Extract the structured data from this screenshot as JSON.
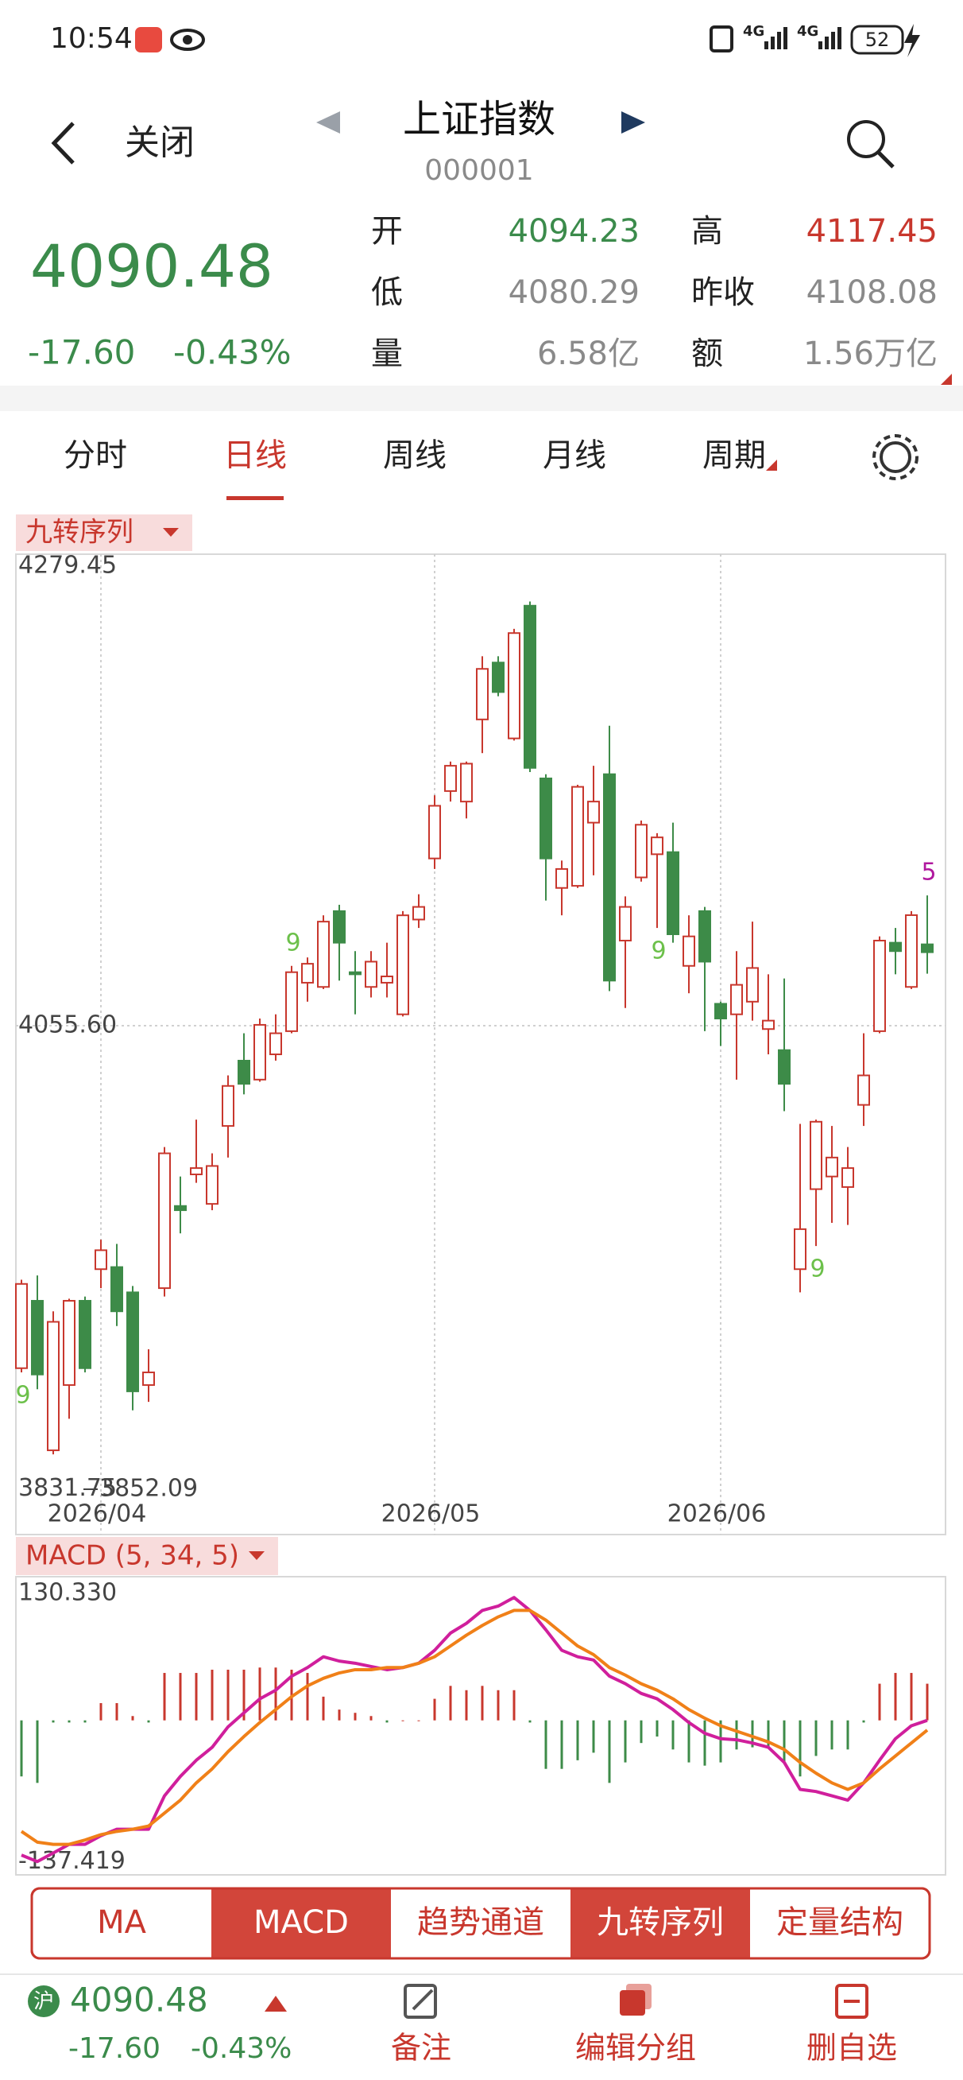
{
  "status": {
    "time": "10:54",
    "network": [
      "4G",
      "4G"
    ],
    "battery": "52"
  },
  "header": {
    "back": "关闭",
    "title": "上证指数",
    "code": "000001"
  },
  "quote": {
    "price": "4090.48",
    "change": "-17.60",
    "change_pct": "-0.43%",
    "color": "#3b8b4b",
    "fields": [
      {
        "label": "开",
        "value": "4094.23",
        "color": "#3b8b4b"
      },
      {
        "label": "高",
        "value": "4117.45",
        "color": "#c8372d"
      },
      {
        "label": "低",
        "value": "4080.29",
        "color": "#8a8a8a"
      },
      {
        "label": "昨收",
        "value": "4108.08",
        "color": "#8a8a8a"
      },
      {
        "label": "量",
        "value": "6.58亿",
        "color": "#8a8a8a"
      },
      {
        "label": "额",
        "value": "1.56万亿",
        "color": "#8a8a8a"
      }
    ]
  },
  "tabs": [
    {
      "label": "分时",
      "active": false
    },
    {
      "label": "日线",
      "active": true
    },
    {
      "label": "周线",
      "active": false
    },
    {
      "label": "月线",
      "active": false
    },
    {
      "label": "周期",
      "active": false
    }
  ],
  "chart_data": [
    {
      "type": "candlestick",
      "indicator": "九转序列",
      "categories": [
        null,
        null,
        null,
        null,
        null,
        "2026/04",
        null,
        null,
        null,
        null,
        null,
        null,
        null,
        null,
        null,
        null,
        null,
        null,
        null,
        null,
        null,
        null,
        null,
        null,
        null,
        null,
        "2026/05",
        null,
        null,
        null,
        null,
        null,
        null,
        null,
        null,
        null,
        null,
        null,
        null,
        null,
        null,
        null,
        null,
        null,
        "2026/06",
        null,
        null,
        null,
        null,
        null,
        null,
        null,
        null,
        null,
        null,
        null,
        null,
        null
      ],
      "open": [
        3893,
        3925,
        3854,
        3885,
        3925,
        3940,
        3941,
        3929,
        3885,
        3931,
        3970,
        3985,
        3971,
        4008,
        4039,
        4030,
        4042,
        4053,
        4076,
        4074,
        4110,
        4081,
        4074,
        4076,
        4061,
        4106,
        4135,
        4167,
        4162,
        4201,
        4228,
        4192,
        4255,
        4173,
        4121,
        4122,
        4152,
        4175,
        4096,
        4126,
        4137,
        4138,
        4084,
        4110,
        4066,
        4061,
        4067,
        4054,
        4044,
        3940,
        3978,
        3984,
        3979,
        4018,
        4053,
        4095,
        4074,
        4094.23
      ],
      "high": [
        3935,
        3937,
        3920,
        3926,
        3927,
        3954,
        3952,
        3932,
        3902,
        3998,
        3984,
        4011,
        3995,
        4032,
        4052,
        4059,
        4061,
        4084,
        4088,
        4108,
        4113,
        4091,
        4091,
        4095,
        4110,
        4118,
        4165,
        4181,
        4181,
        4231,
        4231,
        4244,
        4257,
        4175,
        4134,
        4170,
        4179,
        4198,
        4117,
        4153,
        4147,
        4152,
        4108,
        4112,
        4067,
        4091,
        4105,
        4080,
        4078,
        4009,
        4011,
        4008,
        3998,
        4052,
        4098,
        4102,
        4110,
        4117.45
      ],
      "low": [
        3891,
        3883,
        3852.09,
        3869,
        3891,
        3931,
        3913,
        3873,
        3877,
        3927,
        3957,
        3981,
        3968,
        3993,
        4023,
        4029,
        4039,
        4052,
        4067,
        4073,
        4077,
        4061,
        4069,
        4069,
        4060,
        4102,
        4130,
        4162,
        4154,
        4185,
        4212,
        4191,
        4176,
        4115,
        4108,
        4121,
        4127,
        4072,
        4064,
        4124,
        4102,
        4095,
        4071,
        4053,
        4046,
        4030,
        4058,
        4042,
        4015,
        3929,
        3951,
        3962,
        3961,
        4008,
        4052,
        4080,
        4073,
        4080.29
      ],
      "close": [
        3933,
        3890,
        3915,
        3925,
        3893,
        3949,
        3920,
        3882,
        3891,
        3995,
        3968,
        3988,
        3989,
        4027,
        4028,
        4056,
        4052,
        4081,
        4085,
        4105,
        4095,
        4080,
        4086,
        4079,
        4108,
        4112,
        4160,
        4179,
        4180,
        4225,
        4214,
        4242,
        4178,
        4135,
        4130,
        4169,
        4162,
        4077,
        4112,
        4151,
        4145,
        4099,
        4098,
        4086,
        4059,
        4075,
        4083,
        4058,
        4028,
        3959,
        4010,
        3993,
        3988,
        4032,
        4096,
        4091,
        4108.08,
        4090.48
      ],
      "up_color": "#c8372d",
      "down_color": "#3d8b48",
      "sequence_labels": [
        {
          "label": "9",
          "place": "below",
          "color": "#6cc04a"
        },
        null,
        null,
        null,
        null,
        null,
        null,
        null,
        null,
        null,
        null,
        null,
        null,
        null,
        null,
        null,
        null,
        {
          "label": "9",
          "place": "above",
          "color": "#6cc04a"
        },
        null,
        null,
        null,
        null,
        null,
        null,
        null,
        null,
        null,
        null,
        null,
        null,
        null,
        null,
        null,
        null,
        null,
        null,
        null,
        null,
        null,
        null,
        {
          "label": "9",
          "place": "below",
          "color": "#6cc04a"
        },
        null,
        null,
        null,
        null,
        null,
        null,
        null,
        null,
        null,
        {
          "label": "9",
          "place": "below",
          "color": "#6cc04a"
        },
        null,
        null,
        null,
        null,
        null,
        null,
        {
          "label": "5",
          "place": "above",
          "color": "#b0189e"
        }
      ],
      "ylim": [
        3831.75,
        4279.45
      ],
      "yticks": [
        4279.45,
        {
          "value": 4055.6,
          "label": "4055.60"
        },
        3831.75
      ],
      "grid": true
    },
    {
      "type": "macd",
      "title": "MACD (5, 34, 5)",
      "ylim": [
        -137.419,
        130.33
      ],
      "yticks": [
        {
          "value": 130.33,
          "label": "130.330"
        },
        -137.419
      ],
      "series": [
        {
          "color": "#d01f9c",
          "values": [
            -125,
            -131,
            -123,
            -115,
            -115,
            -107,
            -101,
            -101,
            -101,
            -70,
            -52,
            -37,
            -25,
            -6,
            7,
            20,
            28,
            41,
            49,
            59,
            55,
            53,
            50,
            47,
            49,
            53,
            65,
            81,
            90,
            102,
            106,
            114,
            102,
            84,
            65,
            59,
            56,
            41,
            34,
            25,
            20,
            10,
            -2,
            -12,
            -17,
            -18,
            -21,
            -25,
            -39,
            -64,
            -66,
            -70,
            -74,
            -58,
            -37,
            -17,
            -5,
            0
          ]
        },
        {
          "color": "#f08018",
          "values": [
            -103,
            -113,
            -115,
            -115,
            -111,
            -106,
            -103,
            -101,
            -98,
            -86,
            -74,
            -58,
            -45,
            -29,
            -15,
            -2,
            10,
            22,
            32,
            39,
            44,
            47,
            47,
            49,
            49,
            53,
            59,
            69,
            79,
            88,
            96,
            102,
            102,
            93,
            81,
            69,
            61,
            49,
            42,
            34,
            28,
            20,
            10,
            2,
            -5,
            -10,
            -15,
            -20,
            -27,
            -39,
            -49,
            -58,
            -64,
            -58,
            -45,
            -33,
            -21,
            -9
          ]
        }
      ],
      "histogram": {
        "up_color": "#c8372d",
        "down_color": "#3d8b48",
        "values": [
          -52,
          -58,
          -2,
          -2,
          -2,
          16,
          16,
          4,
          -2,
          44,
          44,
          44,
          47,
          47,
          47,
          49,
          49,
          47,
          44,
          22,
          10,
          7,
          4,
          -2,
          0,
          0,
          20,
          32,
          28,
          32,
          28,
          28,
          -2,
          -45,
          -45,
          -37,
          -30,
          -58,
          -39,
          -21,
          -15,
          -27,
          -39,
          -42,
          -39,
          -27,
          -25,
          -25,
          -39,
          -52,
          -33,
          -27,
          -27,
          -2,
          34,
          44,
          44,
          34
        ]
      }
    }
  ],
  "buttons": [
    {
      "label": "MA",
      "active": false
    },
    {
      "label": "MACD",
      "active": true
    },
    {
      "label": "趋势通道",
      "active": false
    },
    {
      "label": "九转序列",
      "active": true
    },
    {
      "label": "定量结构",
      "active": false
    }
  ],
  "footer": {
    "market": "沪",
    "price": "4090.48",
    "change": "-17.60",
    "change_pct": "-0.43%",
    "actions": [
      "备注",
      "编辑分组",
      "删自选"
    ]
  }
}
